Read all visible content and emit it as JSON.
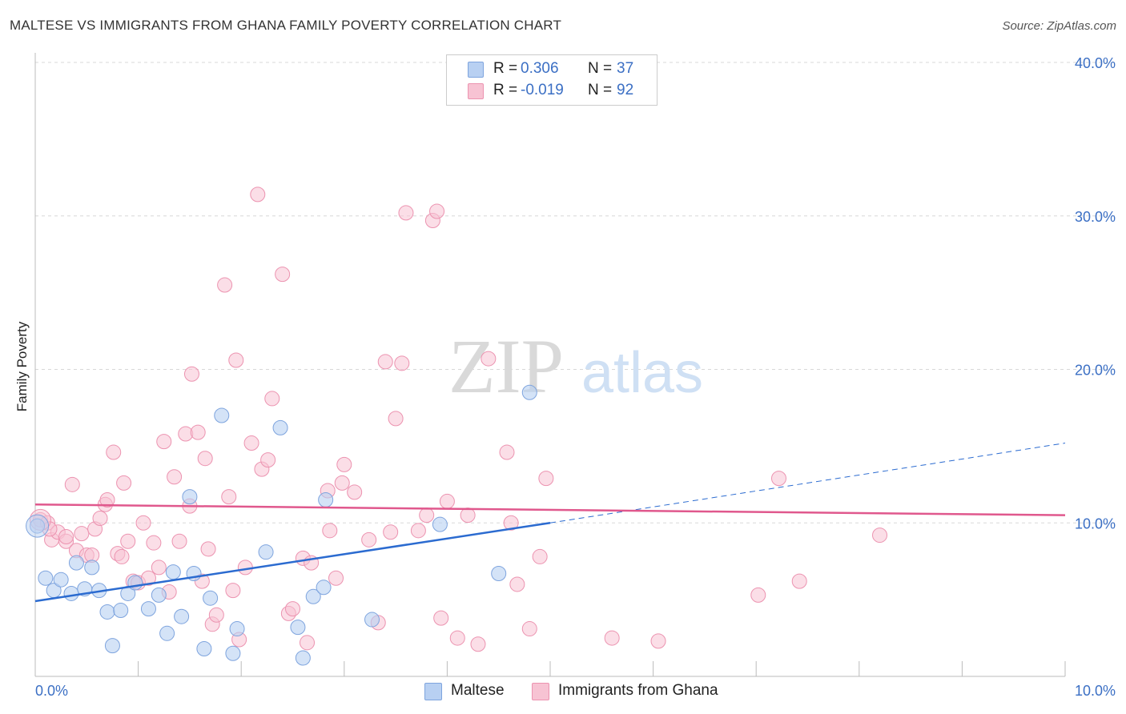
{
  "title": "MALTESE VS IMMIGRANTS FROM GHANA FAMILY POVERTY CORRELATION CHART",
  "source": "Source: ZipAtlas.com",
  "watermark": {
    "zip": "ZIP",
    "atlas": "atlas"
  },
  "legend": {
    "rows": [
      {
        "r_label": "R =",
        "r_value": "0.306",
        "n_label": "N =",
        "n_value": "37"
      },
      {
        "r_label": "R =",
        "r_value": "-0.019",
        "n_label": "N =",
        "n_value": "92"
      }
    ]
  },
  "bottom_legend": [
    "Maltese",
    "Immigrants from Ghana"
  ],
  "colors": {
    "maltese_fill": "#b8d0f2",
    "maltese_stroke": "#7ea4de",
    "maltese_line": "#2b6bd0",
    "ghana_fill": "#f7c3d3",
    "ghana_stroke": "#ec93b0",
    "ghana_line": "#e0588d",
    "tick_label": "#3b6fc4",
    "grid": "#d8d8d8"
  },
  "chart_data": {
    "type": "scatter",
    "title": "MALTESE VS IMMIGRANTS FROM GHANA FAMILY POVERTY CORRELATION CHART",
    "xlabel": "",
    "ylabel": "Family Poverty",
    "xlim": [
      0,
      10
    ],
    "ylim": [
      0,
      40
    ],
    "x_tick_labels": [
      "0.0%",
      "10.0%"
    ],
    "y_tick_labels": [
      "10.0%",
      "20.0%",
      "30.0%",
      "40.0%"
    ],
    "y_ticks": [
      10,
      20,
      30,
      40
    ],
    "grid": true,
    "legend_placement": "top-center",
    "series": [
      {
        "name": "Maltese",
        "r": 0.306,
        "n": 37,
        "trend": {
          "x": [
            0,
            5
          ],
          "y": [
            4.9,
            10.0
          ],
          "dashed_extension": {
            "x": [
              5,
              10
            ],
            "y": [
              10.0,
              15.2
            ]
          }
        },
        "points": [
          [
            0.02,
            9.8
          ],
          [
            0.1,
            6.4
          ],
          [
            0.18,
            5.6
          ],
          [
            0.25,
            6.3
          ],
          [
            0.35,
            5.4
          ],
          [
            0.4,
            7.4
          ],
          [
            0.48,
            5.7
          ],
          [
            0.55,
            7.1
          ],
          [
            0.62,
            5.6
          ],
          [
            0.7,
            4.2
          ],
          [
            0.75,
            2.0
          ],
          [
            0.83,
            4.3
          ],
          [
            0.9,
            5.4
          ],
          [
            0.97,
            6.1
          ],
          [
            1.1,
            4.4
          ],
          [
            1.2,
            5.3
          ],
          [
            1.28,
            2.8
          ],
          [
            1.34,
            6.8
          ],
          [
            1.42,
            3.9
          ],
          [
            1.5,
            11.7
          ],
          [
            1.54,
            6.7
          ],
          [
            1.64,
            1.8
          ],
          [
            1.7,
            5.1
          ],
          [
            1.81,
            17.0
          ],
          [
            1.92,
            1.5
          ],
          [
            1.96,
            3.1
          ],
          [
            2.24,
            8.1
          ],
          [
            2.38,
            16.2
          ],
          [
            2.55,
            3.2
          ],
          [
            2.6,
            1.2
          ],
          [
            2.7,
            5.2
          ],
          [
            2.8,
            5.8
          ],
          [
            2.82,
            11.5
          ],
          [
            3.27,
            3.7
          ],
          [
            3.93,
            9.9
          ],
          [
            4.5,
            6.7
          ],
          [
            4.8,
            18.5
          ]
        ]
      },
      {
        "name": "Immigrants from Ghana",
        "r": -0.019,
        "n": 92,
        "trend": {
          "x": [
            0,
            10
          ],
          "y": [
            11.2,
            10.5
          ]
        },
        "points": [
          [
            0.05,
            10.2
          ],
          [
            0.12,
            10.0
          ],
          [
            0.16,
            8.9
          ],
          [
            0.22,
            9.4
          ],
          [
            0.3,
            8.8
          ],
          [
            0.36,
            12.5
          ],
          [
            0.4,
            8.2
          ],
          [
            0.45,
            9.3
          ],
          [
            0.5,
            7.9
          ],
          [
            0.55,
            7.9
          ],
          [
            0.58,
            9.6
          ],
          [
            0.63,
            10.3
          ],
          [
            0.68,
            11.2
          ],
          [
            0.7,
            11.5
          ],
          [
            0.76,
            14.6
          ],
          [
            0.8,
            8.0
          ],
          [
            0.84,
            7.8
          ],
          [
            0.86,
            12.6
          ],
          [
            0.9,
            8.8
          ],
          [
            0.95,
            6.2
          ],
          [
            1.0,
            6.1
          ],
          [
            1.05,
            10.0
          ],
          [
            1.1,
            6.4
          ],
          [
            1.15,
            8.7
          ],
          [
            1.2,
            7.1
          ],
          [
            1.25,
            15.3
          ],
          [
            1.3,
            5.5
          ],
          [
            1.35,
            13.0
          ],
          [
            1.4,
            8.8
          ],
          [
            1.46,
            15.8
          ],
          [
            1.5,
            11.1
          ],
          [
            1.52,
            19.7
          ],
          [
            1.58,
            15.9
          ],
          [
            1.62,
            6.2
          ],
          [
            1.65,
            14.2
          ],
          [
            1.68,
            8.3
          ],
          [
            1.72,
            3.4
          ],
          [
            1.76,
            4.0
          ],
          [
            1.84,
            25.5
          ],
          [
            1.88,
            11.7
          ],
          [
            1.92,
            5.6
          ],
          [
            1.95,
            20.6
          ],
          [
            1.98,
            2.4
          ],
          [
            2.04,
            7.1
          ],
          [
            2.1,
            15.2
          ],
          [
            2.16,
            31.4
          ],
          [
            2.2,
            13.5
          ],
          [
            2.26,
            14.1
          ],
          [
            2.3,
            18.1
          ],
          [
            2.4,
            26.2
          ],
          [
            2.46,
            4.1
          ],
          [
            2.5,
            4.4
          ],
          [
            2.6,
            7.7
          ],
          [
            2.64,
            2.2
          ],
          [
            2.68,
            7.4
          ],
          [
            2.84,
            12.1
          ],
          [
            2.86,
            9.5
          ],
          [
            2.92,
            6.4
          ],
          [
            2.98,
            12.6
          ],
          [
            3.0,
            13.8
          ],
          [
            3.1,
            12.0
          ],
          [
            3.24,
            8.9
          ],
          [
            3.33,
            3.5
          ],
          [
            3.4,
            20.5
          ],
          [
            3.45,
            9.4
          ],
          [
            3.5,
            16.8
          ],
          [
            3.56,
            20.4
          ],
          [
            3.6,
            30.2
          ],
          [
            3.72,
            9.5
          ],
          [
            3.8,
            10.5
          ],
          [
            3.86,
            29.7
          ],
          [
            3.9,
            30.3
          ],
          [
            3.94,
            3.8
          ],
          [
            4.0,
            11.4
          ],
          [
            4.1,
            2.5
          ],
          [
            4.2,
            10.5
          ],
          [
            4.3,
            2.1
          ],
          [
            4.4,
            20.7
          ],
          [
            4.58,
            14.6
          ],
          [
            4.62,
            10.0
          ],
          [
            4.68,
            6.0
          ],
          [
            4.8,
            3.1
          ],
          [
            4.9,
            7.8
          ],
          [
            4.96,
            12.9
          ],
          [
            5.6,
            2.5
          ],
          [
            6.05,
            2.3
          ],
          [
            7.02,
            5.3
          ],
          [
            7.22,
            12.9
          ],
          [
            7.42,
            6.2
          ],
          [
            8.2,
            9.2
          ],
          [
            0.3,
            9.1
          ],
          [
            0.14,
            9.6
          ]
        ]
      }
    ]
  }
}
